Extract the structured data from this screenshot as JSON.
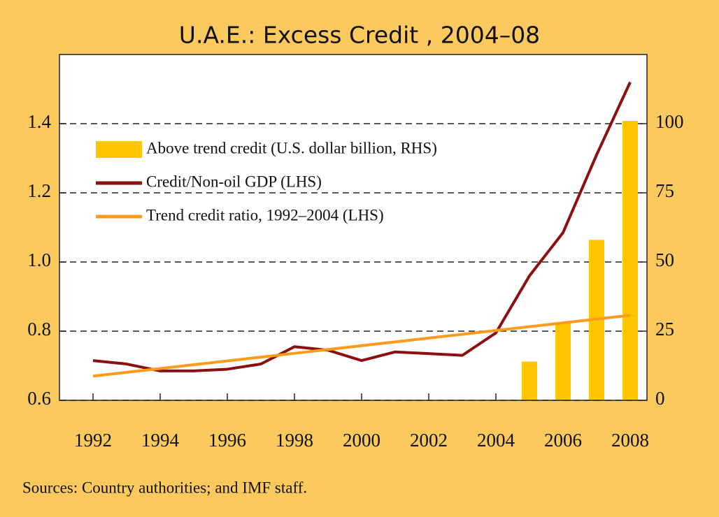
{
  "chart_data": {
    "type": "combo",
    "title": "U.A.E.: Excess Credit , 2004–08",
    "source": "Sources: Country authorities; and IMF staff.",
    "x": [
      1992,
      1993,
      1994,
      1995,
      1996,
      1997,
      1998,
      1999,
      2000,
      2001,
      2002,
      2003,
      2004,
      2005,
      2006,
      2007,
      2008
    ],
    "xlim": [
      1991,
      2008.5
    ],
    "xticks": [
      1992,
      1994,
      1996,
      1998,
      2000,
      2002,
      2004,
      2006,
      2008
    ],
    "ylim": [
      0.6,
      1.6
    ],
    "yticks": [
      0.6,
      0.8,
      {
        "value": 1,
        "label": "1.0"
      },
      1.2,
      1.4
    ],
    "y2lim": [
      0,
      125
    ],
    "y2ticks": [
      0,
      25,
      50,
      75,
      100
    ],
    "grid": true,
    "legend": "upper left",
    "series": [
      {
        "name": "Above trend credit (U.S. dollar billion, RHS)",
        "type": "bar",
        "axis": "y2",
        "color": "#ffc600",
        "values": [
          null,
          null,
          null,
          null,
          null,
          null,
          null,
          null,
          null,
          null,
          null,
          null,
          null,
          14,
          28,
          58,
          101
        ]
      },
      {
        "name": "Credit/Non-oil GDP (LHS)",
        "type": "line",
        "color": "#8b1010",
        "values": [
          0.715,
          0.705,
          0.685,
          0.685,
          0.69,
          0.705,
          0.755,
          0.745,
          0.715,
          0.74,
          0.735,
          0.73,
          0.795,
          0.96,
          1.085,
          1.31,
          1.52
        ]
      },
      {
        "name": "Trend credit ratio, 1992–2004 (LHS)",
        "type": "line",
        "color": "#ff9a1a",
        "values": [
          0.67,
          0.681,
          0.692,
          0.703,
          0.714,
          0.725,
          0.736,
          0.747,
          0.758,
          0.769,
          0.78,
          0.791,
          0.802,
          0.813,
          0.824,
          0.835,
          0.846
        ]
      }
    ]
  }
}
